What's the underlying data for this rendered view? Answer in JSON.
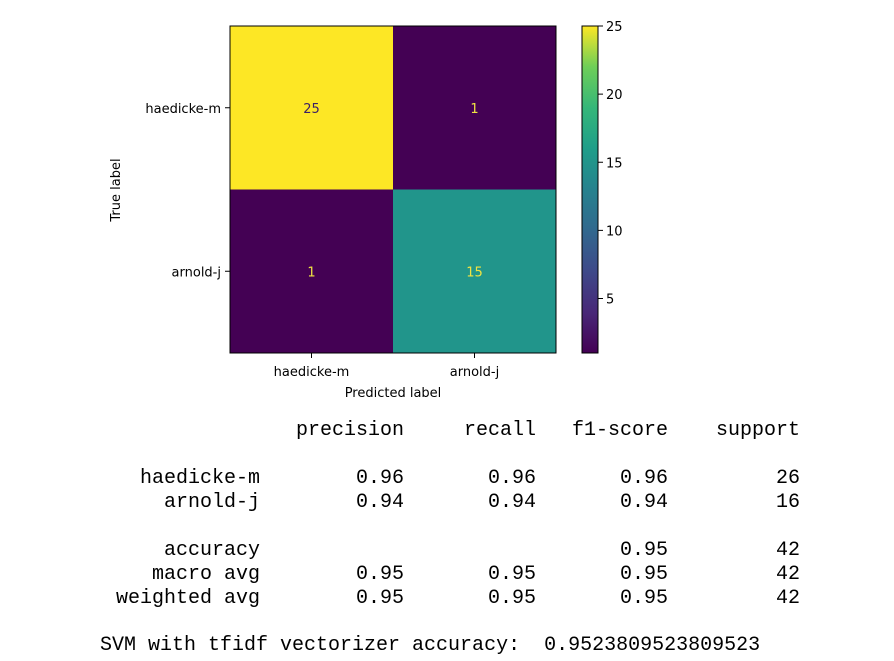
{
  "chart_data": {
    "type": "heatmap",
    "xlabel": "Predicted label",
    "ylabel": "True label",
    "x_categories": [
      "haedicke-m",
      "arnold-j"
    ],
    "y_categories": [
      "haedicke-m",
      "arnold-j"
    ],
    "matrix": [
      [
        25,
        1
      ],
      [
        1,
        15
      ]
    ],
    "colorbar": {
      "min": 1,
      "max": 25,
      "ticks": [
        5,
        10,
        15,
        20,
        25
      ],
      "colormap": "viridis"
    }
  },
  "report": {
    "headers": [
      "precision",
      "recall",
      "f1-score",
      "support"
    ],
    "rows": [
      {
        "label": "haedicke-m",
        "precision": "0.96",
        "recall": "0.96",
        "f1": "0.96",
        "support": "26"
      },
      {
        "label": "arnold-j",
        "precision": "0.94",
        "recall": "0.94",
        "f1": "0.94",
        "support": "16"
      }
    ],
    "summary": [
      {
        "label": "accuracy",
        "precision": "",
        "recall": "",
        "f1": "0.95",
        "support": "42"
      },
      {
        "label": "macro avg",
        "precision": "0.95",
        "recall": "0.95",
        "f1": "0.95",
        "support": "42"
      },
      {
        "label": "weighted avg",
        "precision": "0.95",
        "recall": "0.95",
        "f1": "0.95",
        "support": "42"
      }
    ],
    "accuracy_line": "SVM with tfidf vectorizer accuracy:  0.9523809523809523"
  },
  "colors": {
    "high": "#fde725",
    "mid": "#21a585",
    "low": "#440154",
    "text_dark": "#3b1f66",
    "text_light": "#f0e442"
  }
}
